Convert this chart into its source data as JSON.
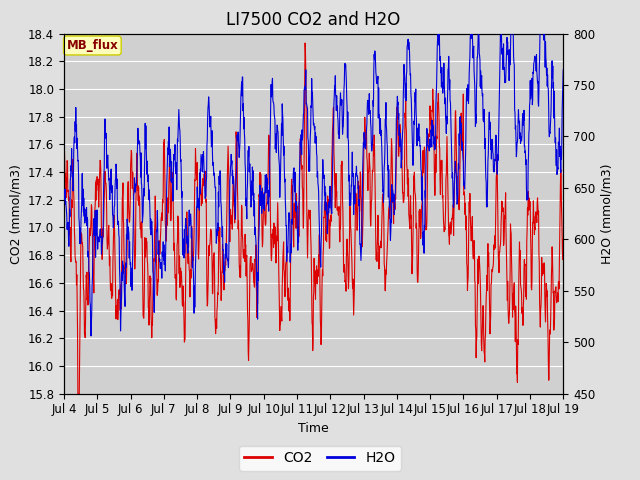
{
  "title": "LI7500 CO2 and H2O",
  "xlabel": "Time",
  "ylabel_left": "CO2 (mmol/m3)",
  "ylabel_right": "H2O (mmol/m3)",
  "co2_ylim": [
    15.8,
    18.4
  ],
  "h2o_ylim": [
    450,
    800
  ],
  "co2_yticks": [
    15.8,
    16.0,
    16.2,
    16.4,
    16.6,
    16.8,
    17.0,
    17.2,
    17.4,
    17.6,
    17.8,
    18.0,
    18.2,
    18.4
  ],
  "h2o_yticks": [
    450,
    500,
    550,
    600,
    650,
    700,
    750,
    800
  ],
  "xtick_labels": [
    "Jul 4",
    "Jul 5",
    "Jul 6",
    "Jul 7",
    "Jul 8",
    "Jul 9",
    "Jul 10",
    "Jul 11",
    "Jul 12",
    "Jul 13",
    "Jul 14",
    "Jul 15",
    "Jul 16",
    "Jul 17",
    "Jul 18",
    "Jul 19"
  ],
  "co2_color": "#dd0000",
  "h2o_color": "#0000dd",
  "fig_bg_color": "#e0e0e0",
  "plot_bg_color": "#d0d0d0",
  "grid_color": "#ffffff",
  "annotation_text": "MB_flux",
  "annotation_bg": "#ffffbb",
  "annotation_border": "#cccc00",
  "annotation_text_color": "#880000",
  "legend_co2": "CO2",
  "legend_h2o": "H2O",
  "title_fontsize": 12,
  "axis_label_fontsize": 9,
  "tick_fontsize": 8.5,
  "legend_fontsize": 10
}
